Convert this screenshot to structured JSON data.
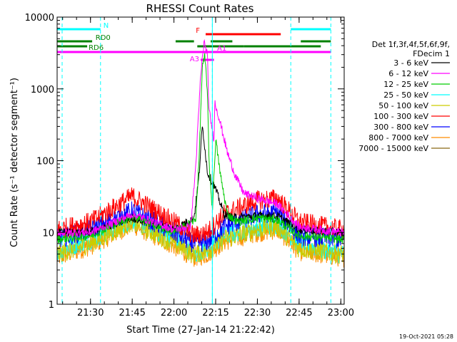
{
  "chart_data": {
    "type": "line",
    "title": "RHESSI Count Rates",
    "xlabel": "Start Time (27-Jan-14 21:22:42)",
    "ylabel": "Count Rate (s⁻¹ detector segment⁻¹)",
    "yscale": "log",
    "ylim": [
      1,
      10000
    ],
    "x_range_minutes": [
      21.3,
      23.02
    ],
    "x_ticks": [
      {
        "t": 21.5,
        "label": "21:30"
      },
      {
        "t": 21.75,
        "label": "21:45"
      },
      {
        "t": 22.0,
        "label": "22:00"
      },
      {
        "t": 22.25,
        "label": "22:15"
      },
      {
        "t": 22.5,
        "label": "22:30"
      },
      {
        "t": 22.75,
        "label": "22:45"
      },
      {
        "t": 23.0,
        "label": "23:00"
      }
    ],
    "y_ticks": [
      {
        "v": 1,
        "label": "1"
      },
      {
        "v": 10,
        "label": "10"
      },
      {
        "v": 100,
        "label": "100"
      },
      {
        "v": 1000,
        "label": "1000"
      },
      {
        "v": 10000,
        "label": "10000"
      }
    ],
    "legend": {
      "header": [
        "Det 1f,3f,4f,5f,6f,9f,",
        "FDecim 1"
      ],
      "placement": "right"
    },
    "series": [
      {
        "name": "3 - 6 keV",
        "color": "#000000",
        "points": [
          [
            21.3,
            10
          ],
          [
            21.5,
            10
          ],
          [
            21.75,
            16
          ],
          [
            22.0,
            11
          ],
          [
            22.12,
            16
          ],
          [
            22.15,
            60
          ],
          [
            22.16,
            140
          ],
          [
            22.17,
            300
          ],
          [
            22.18,
            200
          ],
          [
            22.2,
            70
          ],
          [
            22.25,
            40
          ],
          [
            22.3,
            18
          ],
          [
            22.35,
            16
          ],
          [
            22.5,
            17
          ],
          [
            22.62,
            17
          ],
          [
            22.75,
            11
          ],
          [
            23.0,
            10
          ]
        ]
      },
      {
        "name": "6 - 12 keV",
        "color": "#ff00ff",
        "points": [
          [
            21.3,
            10
          ],
          [
            21.5,
            10
          ],
          [
            21.75,
            18
          ],
          [
            22.0,
            11
          ],
          [
            22.1,
            12
          ],
          [
            22.13,
            80
          ],
          [
            22.16,
            1500
          ],
          [
            22.18,
            4500
          ],
          [
            22.2,
            3000
          ],
          [
            22.21,
            500
          ],
          [
            22.24,
            200
          ],
          [
            22.245,
            650
          ],
          [
            22.27,
            400
          ],
          [
            22.32,
            130
          ],
          [
            22.37,
            60
          ],
          [
            22.42,
            35
          ],
          [
            22.5,
            30
          ],
          [
            22.62,
            25
          ],
          [
            22.75,
            12
          ],
          [
            23.0,
            10
          ]
        ]
      },
      {
        "name": "12 - 25 keV",
        "color": "#00cc00",
        "points": [
          [
            21.3,
            8
          ],
          [
            21.5,
            9
          ],
          [
            21.75,
            17
          ],
          [
            22.0,
            10
          ],
          [
            22.13,
            15
          ],
          [
            22.15,
            100
          ],
          [
            22.17,
            2000
          ],
          [
            22.185,
            2800
          ],
          [
            22.2,
            1000
          ],
          [
            22.21,
            100
          ],
          [
            22.23,
            20
          ],
          [
            22.25,
            200
          ],
          [
            22.28,
            60
          ],
          [
            22.32,
            18
          ],
          [
            22.38,
            14
          ],
          [
            22.5,
            16
          ],
          [
            22.62,
            15
          ],
          [
            22.75,
            9
          ],
          [
            23.0,
            8
          ]
        ]
      },
      {
        "name": "25 - 50 keV",
        "color": "#00ffff",
        "points": [
          [
            21.3,
            5.5
          ],
          [
            21.5,
            8
          ],
          [
            21.75,
            15
          ],
          [
            22.0,
            8
          ],
          [
            22.12,
            5
          ],
          [
            22.2,
            6
          ],
          [
            22.3,
            9
          ],
          [
            22.5,
            12
          ],
          [
            22.62,
            13
          ],
          [
            22.75,
            7
          ],
          [
            23.0,
            5
          ]
        ]
      },
      {
        "name": "50 - 100 keV",
        "color": "#cccc00",
        "points": [
          [
            21.3,
            5
          ],
          [
            21.5,
            7
          ],
          [
            21.75,
            14
          ],
          [
            22.0,
            7
          ],
          [
            22.12,
            5
          ],
          [
            22.2,
            5.5
          ],
          [
            22.3,
            8
          ],
          [
            22.5,
            11
          ],
          [
            22.62,
            12
          ],
          [
            22.75,
            6
          ],
          [
            23.0,
            5
          ]
        ]
      },
      {
        "name": "100 - 300 keV",
        "color": "#ff0000",
        "points": [
          [
            21.3,
            11
          ],
          [
            21.5,
            14
          ],
          [
            21.75,
            32
          ],
          [
            22.0,
            14
          ],
          [
            22.12,
            9
          ],
          [
            22.2,
            10
          ],
          [
            22.3,
            18
          ],
          [
            22.5,
            28
          ],
          [
            22.62,
            30
          ],
          [
            22.75,
            14
          ],
          [
            23.0,
            11
          ]
        ]
      },
      {
        "name": "300 - 800 keV",
        "color": "#0000ff",
        "points": [
          [
            21.3,
            8
          ],
          [
            21.5,
            11
          ],
          [
            21.75,
            20
          ],
          [
            22.0,
            10
          ],
          [
            22.12,
            7
          ],
          [
            22.2,
            7.5
          ],
          [
            22.3,
            12
          ],
          [
            22.5,
            18
          ],
          [
            22.62,
            19
          ],
          [
            22.75,
            9
          ],
          [
            23.0,
            8
          ]
        ]
      },
      {
        "name": "800 - 7000 keV",
        "color": "#ff8c00",
        "points": [
          [
            21.3,
            4.5
          ],
          [
            21.5,
            6.5
          ],
          [
            21.75,
            13
          ],
          [
            22.0,
            6.5
          ],
          [
            22.12,
            4.5
          ],
          [
            22.2,
            5
          ],
          [
            22.3,
            7.5
          ],
          [
            22.5,
            10
          ],
          [
            22.62,
            11
          ],
          [
            22.75,
            5.5
          ],
          [
            23.0,
            4.5
          ]
        ]
      },
      {
        "name": "7000 - 15000 keV",
        "color": "#8b6914",
        "points": []
      }
    ],
    "cyan_dashed_lines_t": [
      21.33,
      21.56,
      22.23,
      22.7,
      22.94
    ],
    "cyan_solid_lines_t": [
      21.3,
      22.23
    ],
    "flags": [
      {
        "label": "N",
        "color": "#00ffff",
        "row": 0,
        "segments": [
          [
            21.3,
            21.56
          ],
          [
            22.7,
            22.94
          ]
        ]
      },
      {
        "label": "F",
        "color": "#ff0000",
        "row": 1,
        "segments": [
          [
            22.19,
            22.64
          ]
        ]
      },
      {
        "label": "RD0",
        "color": "#008000",
        "row": 2,
        "segments": [
          [
            21.3,
            21.51
          ],
          [
            22.01,
            22.12
          ],
          [
            22.22,
            22.35
          ],
          [
            22.76,
            22.94
          ]
        ]
      },
      {
        "label": "RD6",
        "color": "#008000",
        "row": 3,
        "segments": [
          [
            21.3,
            21.48
          ],
          [
            22.14,
            22.42
          ],
          [
            22.42,
            22.88
          ]
        ]
      },
      {
        "label": "A1",
        "color": "#ff00ff",
        "row": 4,
        "segments": [
          [
            21.3,
            22.94
          ]
        ]
      },
      {
        "label": "A3",
        "color": "#ff00ff",
        "row": 5,
        "segments": [
          [
            22.16,
            22.24
          ]
        ]
      }
    ]
  },
  "footer": {
    "date": "19-Oct-2021 05:28"
  }
}
